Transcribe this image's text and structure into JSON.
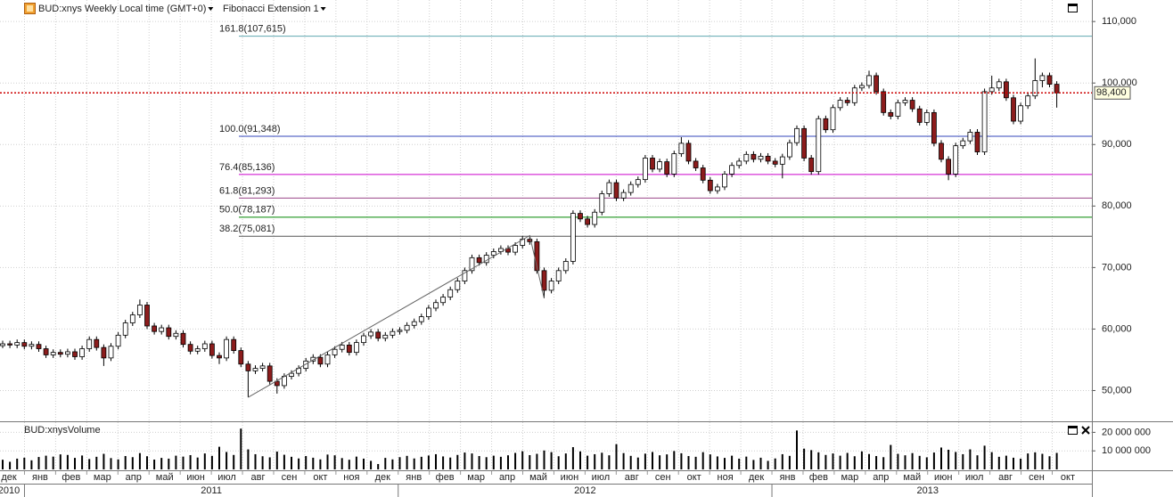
{
  "header": {
    "title": "BUD:xnys Weekly Local time (GMT+0)",
    "indicator": "Fibonacci Extension 1",
    "volume_title": "BUD:xnysVolume"
  },
  "time_axis": {
    "years": [
      {
        "label": "2010",
        "months": [
          "дек"
        ]
      },
      {
        "label": "2011",
        "months": [
          "янв",
          "фев",
          "мар",
          "апр",
          "май",
          "июн",
          "июл",
          "авг",
          "сен",
          "окт",
          "ноя",
          "дек"
        ]
      },
      {
        "label": "2012",
        "months": [
          "янв",
          "фев",
          "мар",
          "апр",
          "май",
          "июн",
          "июл",
          "авг",
          "сен",
          "окт",
          "ноя",
          "дек"
        ]
      },
      {
        "label": "2013",
        "months": [
          "янв",
          "фев",
          "мар",
          "апр",
          "май",
          "июн",
          "июл",
          "авг",
          "сен",
          "окт"
        ]
      }
    ]
  },
  "chart_data": [
    {
      "type": "candlestick",
      "up_color": "#ffffff",
      "down_color": "#8c1c1c",
      "ylim": [
        45000,
        113500
      ],
      "yticks": [
        {
          "value": 50000,
          "label": "50,000"
        },
        {
          "value": 60000,
          "label": "60,000"
        },
        {
          "value": 70000,
          "label": "70,000"
        },
        {
          "value": 80000,
          "label": "80,000"
        },
        {
          "value": 90000,
          "label": "90,000"
        },
        {
          "value": 100000,
          "label": "100,000"
        },
        {
          "value": 110000,
          "label": "110,000"
        }
      ],
      "grid": true,
      "last_price": {
        "value": 98400,
        "label": "98,400",
        "color": "#cc0000"
      },
      "fibonacci": [
        {
          "label": "161.8(107,615)",
          "value": 107615,
          "color": "#5fa8b0"
        },
        {
          "label": "100.0(91,348)",
          "value": 91348,
          "color": "#3344bb"
        },
        {
          "label": "76.4(85,136)",
          "value": 85136,
          "color": "#cc00cc"
        },
        {
          "label": "61.8(81,293)",
          "value": 81293,
          "color": "#994488"
        },
        {
          "label": "50.0(78,187)",
          "value": 78187,
          "color": "#008800"
        },
        {
          "label": "38.2(75,081)",
          "value": 75081,
          "color": "#555555"
        }
      ],
      "ohlc": [
        [
          57300,
          58100,
          56900,
          57600
        ],
        [
          57600,
          58100,
          56900,
          57400
        ],
        [
          57400,
          58300,
          56900,
          57800
        ],
        [
          57800,
          58300,
          56700,
          57200
        ],
        [
          57200,
          58000,
          56700,
          57500
        ],
        [
          57500,
          58000,
          56300,
          56800
        ],
        [
          56800,
          57300,
          55300,
          55800
        ],
        [
          55800,
          56700,
          55300,
          56200
        ],
        [
          56200,
          56700,
          55400,
          55900
        ],
        [
          55900,
          56800,
          55400,
          56300
        ],
        [
          56300,
          56800,
          55000,
          55500
        ],
        [
          55500,
          57300,
          55000,
          56800
        ],
        [
          56800,
          58800,
          56300,
          58300
        ],
        [
          58300,
          58800,
          56500,
          57000
        ],
        [
          57000,
          57500,
          54000,
          55300
        ],
        [
          55300,
          57700,
          54800,
          57200
        ],
        [
          57200,
          59500,
          56700,
          59000
        ],
        [
          59000,
          61500,
          58500,
          61000
        ],
        [
          61000,
          62800,
          60500,
          62300
        ],
        [
          62300,
          64800,
          61800,
          63900
        ],
        [
          63900,
          64400,
          60000,
          60500
        ],
        [
          60500,
          61000,
          59100,
          59600
        ],
        [
          59600,
          60700,
          59100,
          60200
        ],
        [
          60200,
          60700,
          58300,
          58800
        ],
        [
          58800,
          59800,
          58300,
          59300
        ],
        [
          59300,
          59800,
          57000,
          57500
        ],
        [
          57500,
          58000,
          55900,
          56400
        ],
        [
          56400,
          57300,
          55900,
          56800
        ],
        [
          56800,
          58100,
          56300,
          57600
        ],
        [
          57600,
          58100,
          55200,
          55700
        ],
        [
          55700,
          56200,
          54300,
          55300
        ],
        [
          55300,
          58800,
          54800,
          58300
        ],
        [
          58300,
          58800,
          56000,
          56500
        ],
        [
          56500,
          57000,
          53800,
          54300
        ],
        [
          54300,
          54800,
          48900,
          53200
        ],
        [
          53200,
          54100,
          52700,
          53600
        ],
        [
          53600,
          54500,
          53100,
          54000
        ],
        [
          54000,
          54500,
          51000,
          51500
        ],
        [
          51500,
          52000,
          49500,
          50800
        ],
        [
          50800,
          52800,
          50300,
          52300
        ],
        [
          52300,
          53300,
          51800,
          52800
        ],
        [
          52800,
          54100,
          52300,
          53600
        ],
        [
          53600,
          55300,
          53100,
          54800
        ],
        [
          54800,
          55900,
          54300,
          55400
        ],
        [
          55400,
          55900,
          53800,
          54300
        ],
        [
          54300,
          56300,
          53800,
          55800
        ],
        [
          55800,
          57200,
          55300,
          56700
        ],
        [
          56700,
          57900,
          56200,
          57400
        ],
        [
          57400,
          57900,
          55700,
          56200
        ],
        [
          56200,
          58300,
          55700,
          57800
        ],
        [
          57800,
          59400,
          57300,
          58900
        ],
        [
          58900,
          60000,
          58400,
          59500
        ],
        [
          59500,
          60000,
          58000,
          58500
        ],
        [
          58500,
          59500,
          58000,
          59000
        ],
        [
          59000,
          60100,
          58500,
          59600
        ],
        [
          59600,
          60300,
          59100,
          59800
        ],
        [
          59800,
          61100,
          59300,
          60600
        ],
        [
          60600,
          61700,
          60100,
          61200
        ],
        [
          61200,
          62500,
          60700,
          62000
        ],
        [
          62000,
          63900,
          61500,
          63400
        ],
        [
          63400,
          64800,
          62900,
          64300
        ],
        [
          64300,
          65700,
          63800,
          65200
        ],
        [
          65200,
          66900,
          64700,
          66400
        ],
        [
          66400,
          68300,
          65900,
          67800
        ],
        [
          67800,
          70000,
          67300,
          69500
        ],
        [
          69500,
          72100,
          69000,
          71600
        ],
        [
          71600,
          72100,
          70300,
          70800
        ],
        [
          70800,
          72500,
          70300,
          72000
        ],
        [
          72000,
          73100,
          71500,
          72600
        ],
        [
          72600,
          73600,
          72100,
          73100
        ],
        [
          73100,
          73600,
          72000,
          72500
        ],
        [
          72500,
          74100,
          72000,
          73600
        ],
        [
          73600,
          75100,
          73100,
          74600
        ],
        [
          74600,
          75200,
          73700,
          74200
        ],
        [
          74200,
          74700,
          69000,
          69500
        ],
        [
          69500,
          70000,
          65000,
          66300
        ],
        [
          66300,
          68300,
          65800,
          67800
        ],
        [
          67800,
          70000,
          67300,
          69500
        ],
        [
          69500,
          71500,
          69000,
          71000
        ],
        [
          71000,
          79300,
          70500,
          78800
        ],
        [
          78800,
          79300,
          77400,
          77900
        ],
        [
          77900,
          78400,
          76500,
          77000
        ],
        [
          77000,
          79500,
          76500,
          79000
        ],
        [
          79000,
          82500,
          78500,
          82000
        ],
        [
          82000,
          84300,
          81500,
          83800
        ],
        [
          83800,
          84300,
          80800,
          81300
        ],
        [
          81300,
          82700,
          80800,
          82200
        ],
        [
          82200,
          84000,
          81700,
          83500
        ],
        [
          83500,
          84800,
          83000,
          84300
        ],
        [
          84300,
          88300,
          83800,
          87800
        ],
        [
          87800,
          88300,
          85500,
          86000
        ],
        [
          86000,
          87700,
          85500,
          87200
        ],
        [
          87200,
          87700,
          84700,
          85200
        ],
        [
          85200,
          89000,
          84700,
          88500
        ],
        [
          88500,
          91200,
          88000,
          90200
        ],
        [
          90200,
          90700,
          86800,
          87300
        ],
        [
          87300,
          87800,
          85700,
          86200
        ],
        [
          86200,
          86700,
          83700,
          84200
        ],
        [
          84200,
          84700,
          82000,
          82500
        ],
        [
          82500,
          83600,
          82000,
          83100
        ],
        [
          83100,
          85700,
          82600,
          85200
        ],
        [
          85200,
          87100,
          84700,
          86600
        ],
        [
          86600,
          87800,
          86100,
          87300
        ],
        [
          87300,
          88900,
          86800,
          88400
        ],
        [
          88400,
          88900,
          87100,
          87600
        ],
        [
          87600,
          88600,
          87100,
          88100
        ],
        [
          88100,
          88600,
          86800,
          87300
        ],
        [
          87300,
          87800,
          86300,
          86800
        ],
        [
          86800,
          88500,
          84500,
          88000
        ],
        [
          88000,
          90800,
          87500,
          90300
        ],
        [
          90300,
          93100,
          89800,
          92600
        ],
        [
          92600,
          93100,
          87300,
          87800
        ],
        [
          87800,
          88300,
          85100,
          85600
        ],
        [
          85600,
          94700,
          85100,
          94200
        ],
        [
          94200,
          94700,
          91900,
          92400
        ],
        [
          92400,
          96500,
          91900,
          96000
        ],
        [
          96000,
          97700,
          95500,
          97200
        ],
        [
          97200,
          97700,
          96300,
          96800
        ],
        [
          96800,
          99700,
          96300,
          99200
        ],
        [
          99200,
          100100,
          98700,
          99600
        ],
        [
          99600,
          102000,
          99100,
          101200
        ],
        [
          101200,
          101700,
          98100,
          98600
        ],
        [
          98600,
          99100,
          94700,
          95200
        ],
        [
          95200,
          95700,
          94100,
          94600
        ],
        [
          94600,
          97300,
          94100,
          96800
        ],
        [
          96800,
          97700,
          96300,
          97200
        ],
        [
          97200,
          97700,
          95300,
          95800
        ],
        [
          95800,
          96300,
          93100,
          93600
        ],
        [
          93600,
          95700,
          93100,
          95200
        ],
        [
          95200,
          95700,
          89700,
          90200
        ],
        [
          90200,
          90700,
          87100,
          87600
        ],
        [
          87600,
          88100,
          84200,
          85200
        ],
        [
          85200,
          90300,
          84700,
          89800
        ],
        [
          89800,
          91100,
          89300,
          90600
        ],
        [
          90600,
          92500,
          90100,
          92000
        ],
        [
          92000,
          92500,
          88300,
          88800
        ],
        [
          88800,
          99100,
          88300,
          98600
        ],
        [
          98600,
          101200,
          98100,
          99200
        ],
        [
          99200,
          100700,
          98700,
          100200
        ],
        [
          100200,
          100700,
          97100,
          97600
        ],
        [
          97600,
          98100,
          93300,
          93800
        ],
        [
          93800,
          96800,
          93300,
          96300
        ],
        [
          96300,
          98400,
          95800,
          97900
        ],
        [
          97900,
          104000,
          97400,
          100400
        ],
        [
          100400,
          101700,
          99300,
          101200
        ],
        [
          101200,
          101700,
          99300,
          99800
        ],
        [
          99800,
          100300,
          96000,
          98400
        ]
      ]
    },
    {
      "type": "bar",
      "color": "#000000",
      "ylim": [
        0,
        25000000
      ],
      "yticks": [
        {
          "value": 10000000,
          "label": "10 000 000"
        },
        {
          "value": 20000000,
          "label": "20 000 000"
        }
      ],
      "values": [
        5200000,
        4100000,
        5800000,
        6300000,
        4900000,
        6700000,
        7400000,
        6900000,
        8100000,
        7800000,
        6200000,
        7500000,
        5600000,
        6800000,
        8400000,
        6100000,
        5400000,
        7200000,
        6600000,
        8800000,
        7100000,
        5300000,
        6200000,
        5800000,
        7400000,
        6900000,
        7700000,
        6400000,
        8600000,
        7300000,
        12200000,
        9400000,
        7800000,
        22000000,
        10800000,
        8200000,
        7100000,
        6500000,
        9600000,
        7900000,
        6800000,
        5900000,
        7200000,
        6300000,
        5400000,
        8000000,
        7600000,
        6100000,
        5200000,
        6900000,
        5800000,
        4600000,
        2900000,
        6200000,
        5400000,
        6600000,
        7300000,
        5900000,
        6800000,
        7500000,
        8200000,
        7000000,
        6400000,
        7800000,
        9100000,
        8600000,
        7200000,
        6600000,
        7400000,
        6800000,
        7600000,
        8900000,
        9800000,
        7700000,
        8400000,
        10200000,
        9300000,
        7100000,
        8600000,
        12000000,
        9700000,
        7400000,
        8200000,
        9000000,
        7600000,
        13600000,
        8800000,
        7300000,
        6400000,
        8500000,
        9400000,
        7600000,
        8100000,
        9900000,
        8700000,
        7200000,
        6800000,
        9300000,
        8100000,
        7000000,
        6200000,
        7400000,
        5800000,
        6900000,
        5100000,
        6300000,
        4600000,
        5900000,
        8200000,
        7300000,
        21000000,
        11200000,
        10400000,
        9200000,
        7800000,
        8600000,
        7400000,
        8900000,
        7100000,
        9700000,
        8300000,
        7200000,
        6600000,
        13200000,
        8400000,
        7600000,
        8800000,
        7300000,
        6500000,
        9100000,
        11800000,
        10600000,
        9400000,
        8200000,
        10800000,
        7600000,
        12800000,
        9300000,
        6800000,
        7400000,
        6300000,
        5800000,
        8600000,
        9200000,
        8400000,
        7100000,
        8900000
      ]
    }
  ]
}
